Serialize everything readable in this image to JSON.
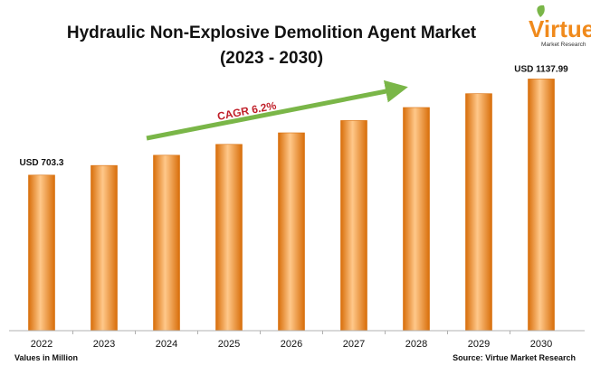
{
  "chart_data": {
    "type": "bar",
    "title_line1": "Hydraulic Non-Explosive Demolition Agent Market",
    "title_line2": "(2023 - 2030)",
    "categories": [
      "2022",
      "2023",
      "2024",
      "2025",
      "2026",
      "2027",
      "2028",
      "2029",
      "2030"
    ],
    "values": [
      703.3,
      746.9,
      793.2,
      842.4,
      894.6,
      950.1,
      1009.0,
      1071.6,
      1137.99
    ],
    "first_label": "USD 703.3",
    "last_label": "USD 1137.99",
    "cagr_label": "CAGR 6.2%",
    "units_note": "Values in Million",
    "source": "Source: Virtue Market Research",
    "ylim": [
      0,
      1250
    ],
    "grid": false,
    "bar_color": "#f7931e",
    "bar_highlight": "#ffc88a",
    "bar_shadow": "#d86e0a",
    "arrow_color": "#7ab648",
    "cagr_color": "#c0202a"
  },
  "logo": {
    "name": "Virtue",
    "tagline": "Market Research",
    "color": "#f08a1c"
  }
}
